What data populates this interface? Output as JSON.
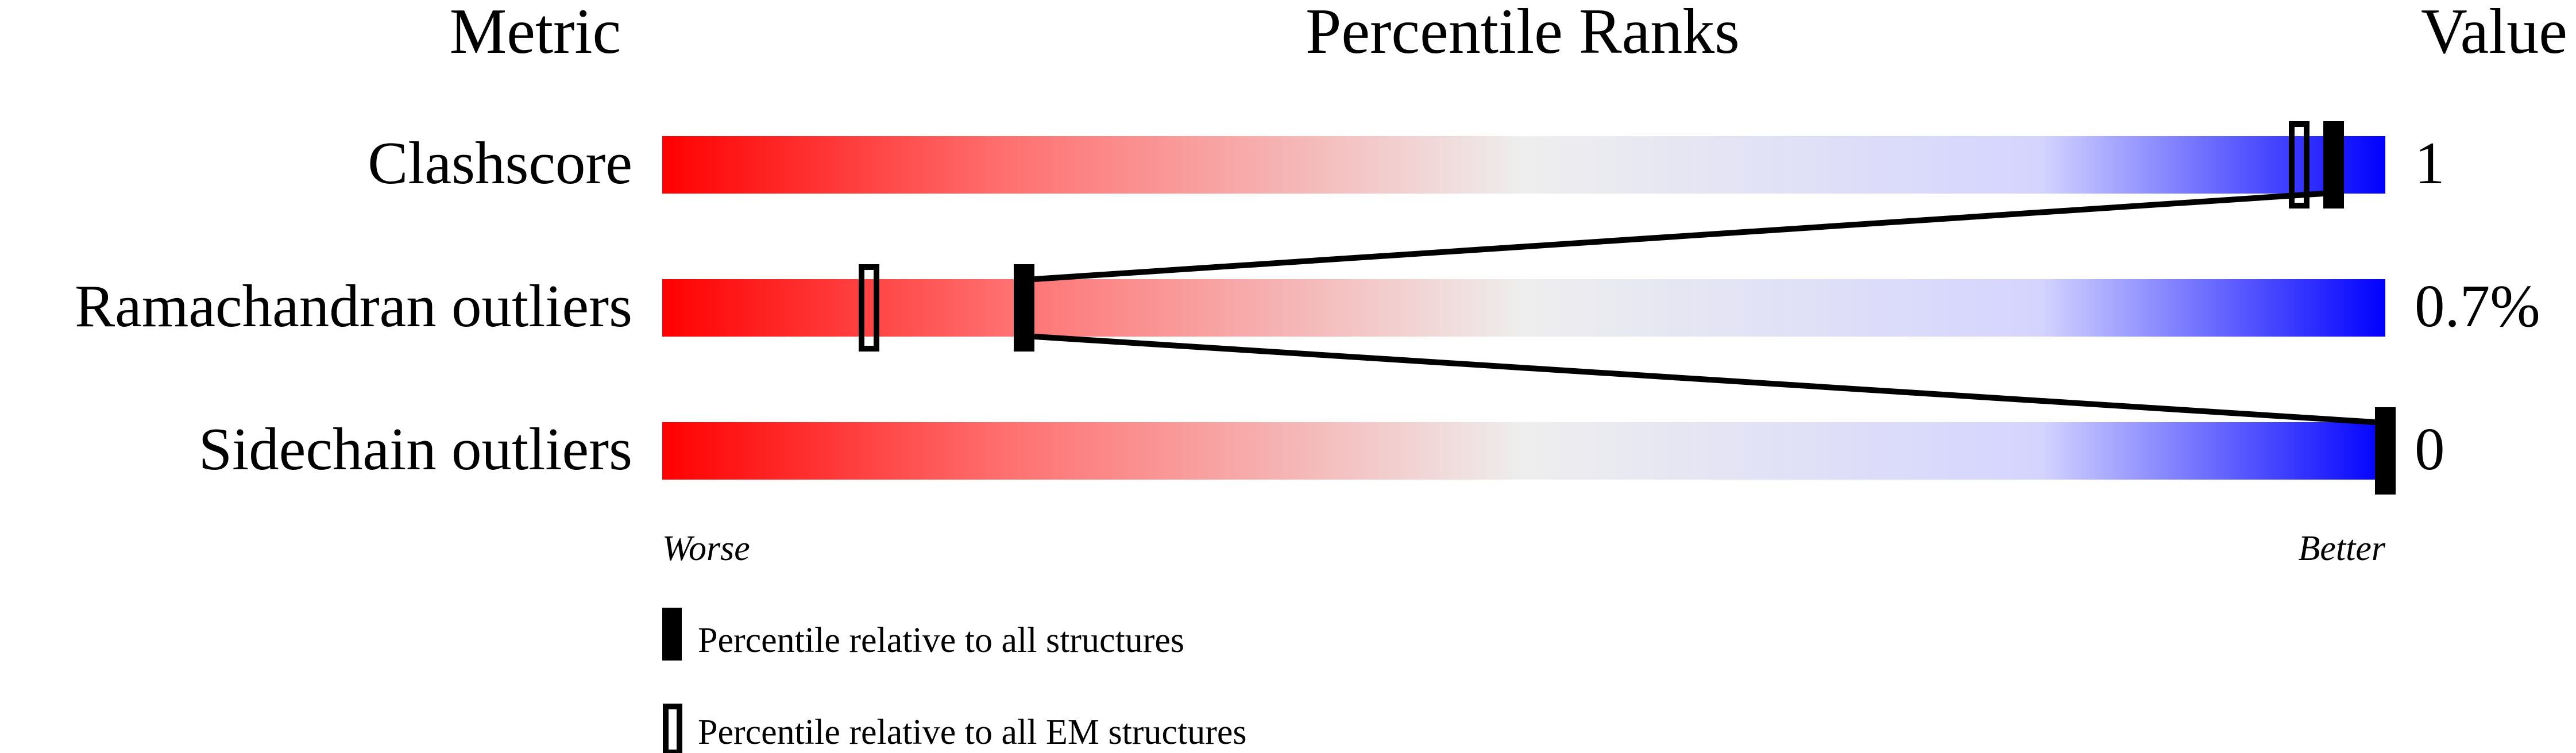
{
  "chart_data": {
    "type": "percentile-bars",
    "headers": {
      "metric": "Metric",
      "ranks": "Percentile Ranks",
      "value": "Value"
    },
    "xlim": [
      0,
      100
    ],
    "axis_labels": {
      "left": "Worse",
      "right": "Better"
    },
    "colors": {
      "worse": "#ff0000",
      "middle": "#eeeeee",
      "better": "#0000ff"
    },
    "metrics": [
      {
        "name": "Clashscore",
        "value": "1",
        "percentile_all": 97,
        "percentile_em": 95
      },
      {
        "name": "Ramachandran outliers",
        "value": "0.7%",
        "percentile_all": 21,
        "percentile_em": 12
      },
      {
        "name": "Sidechain outliers",
        "value": "0",
        "percentile_all": 100,
        "percentile_em": null
      }
    ],
    "legend": [
      {
        "marker": "solid",
        "label": "Percentile relative to all structures"
      },
      {
        "marker": "hollow",
        "label": "Percentile relative to all EM structures"
      }
    ]
  }
}
